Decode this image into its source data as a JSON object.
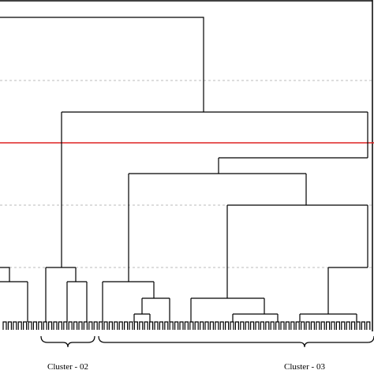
{
  "clusters": [
    {
      "label": "Cluster - 02"
    },
    {
      "label": "Cluster - 03"
    }
  ]
}
